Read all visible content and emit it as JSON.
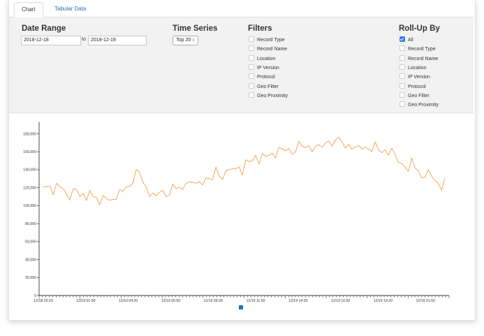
{
  "tabs": [
    {
      "label": "Chart",
      "active": true
    },
    {
      "label": "Tabular Data",
      "active": false
    }
  ],
  "date_range": {
    "title": "Date Range",
    "start": "2018-12-18",
    "to_label": "to",
    "end": "2018-12-19"
  },
  "time_series": {
    "title": "Time Series",
    "selected": "Top 20 ↕"
  },
  "filters": {
    "title": "Filters",
    "items": [
      "Record Type",
      "Record Name",
      "Location",
      "IP Version",
      "Protocol",
      "Geo Filter",
      "Geo Proximity"
    ]
  },
  "rollup": {
    "title": "Roll-Up By",
    "items": [
      {
        "label": "All",
        "checked": true
      },
      {
        "label": "Record Type",
        "checked": false
      },
      {
        "label": "Record Name",
        "checked": false
      },
      {
        "label": "Location",
        "checked": false
      },
      {
        "label": "IP Version",
        "checked": false
      },
      {
        "label": "Protocol",
        "checked": false
      },
      {
        "label": "Geo Filter",
        "checked": false
      },
      {
        "label": "Geo Proximity",
        "checked": false
      }
    ]
  },
  "chart_data": {
    "type": "line",
    "ylim": [
      0,
      180000
    ],
    "y_ticks": [
      0,
      20000,
      40000,
      60000,
      80000,
      100000,
      120000,
      140000,
      160000,
      180000
    ],
    "y_tick_labels": [
      "0",
      "20,000",
      "40,000",
      "60,000",
      "80,000",
      "100,000",
      "120,000",
      "140,000",
      "160,000",
      "180,000"
    ],
    "x_tick_labels": [
      "12/18 23:20",
      "12/19 01:50",
      "12/19 04:20",
      "12/19 06:50",
      "12/19 09:20",
      "12/19 11:50",
      "12/19 14:20",
      "12/19 16:50",
      "12/19 19:20",
      "12/19 21:50"
    ],
    "series_color": "#f5a04a",
    "legend_color": "#1f77b4",
    "series": [
      {
        "values": [
          121000,
          121000,
          121500,
          112000,
          125000,
          121000,
          119000,
          113000,
          106000,
          119000,
          118000,
          110000,
          114000,
          105500,
          117000,
          110000,
          109000,
          101000,
          111500,
          108000,
          106000,
          107000,
          107000,
          118000,
          116000,
          121000,
          121500,
          125000,
          140500,
          137000,
          126000,
          121000,
          110000,
          114000,
          111000,
          115000,
          117000,
          110000,
          112000,
          124000,
          119000,
          120500,
          118000,
          125000,
          126500,
          126000,
          125000,
          127000,
          123000,
          131000,
          130000,
          129000,
          143000,
          133000,
          129000,
          139000,
          140000,
          141000,
          141000,
          143000,
          134000,
          151000,
          149000,
          150000,
          156000,
          146000,
          158000,
          155000,
          156000,
          158500,
          153000,
          165000,
          163000,
          161000,
          164000,
          157000,
          160000,
          172000,
          166000,
          164500,
          167000,
          160000,
          166000,
          168000,
          165000,
          170000,
          172000,
          166000,
          173000,
          176000,
          171000,
          164000,
          168000,
          163000,
          165000,
          167000,
          163000,
          165000,
          163000,
          160000,
          171000,
          162000,
          159000,
          162000,
          156000,
          164000,
          157000,
          148000,
          147000,
          143000,
          138000,
          153000,
          142000,
          139000,
          131000,
          131500,
          140000,
          133000,
          128000,
          125000,
          117000,
          131000
        ]
      }
    ]
  }
}
